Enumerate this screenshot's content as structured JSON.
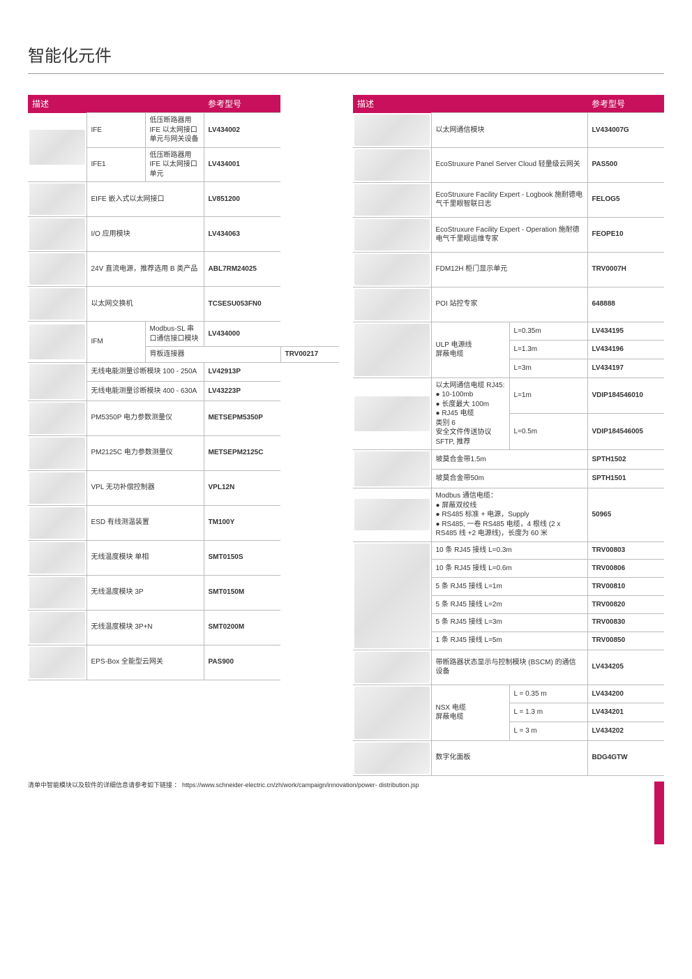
{
  "page_title": "智能化元件",
  "colors": {
    "brand": "#c8105c",
    "border": "#bbbbbb",
    "text": "#333333"
  },
  "headers": {
    "desc": "描述",
    "ref": "参考型号"
  },
  "footnote": "清单中智能模块以及软件的详细信息请参考如下链接 ： https://www.schneider-electric.cn/zh/work/campaign/innovation/power- distribution.jsp",
  "left_table": [
    {
      "img_rows": 2,
      "code": "IFE",
      "desc": "低压断路器用 IFE 以太网接口单元与网关设备",
      "ref": "LV434002"
    },
    {
      "code": "IFE1",
      "desc": "低压断路器用 IFE 以太网接口单元",
      "ref": "LV434001"
    },
    {
      "img_rows": 1,
      "desc": "EIFE 嵌入式以太网接口",
      "ref": "LV851200"
    },
    {
      "img_rows": 1,
      "desc": "I/O 应用模块",
      "ref": "LV434063"
    },
    {
      "img_rows": 1,
      "desc": "24V 直流电源，推荐选用 B 类产品",
      "ref": "ABL7RM24025"
    },
    {
      "img_rows": 1,
      "desc": "以太网交换机",
      "ref": "TCSESU053FN0"
    },
    {
      "img_rows": 2,
      "code": "IFM",
      "desc": "Modbus-SL 串口通信接口模块",
      "ref": "LV434000"
    },
    {
      "desc": "背板连接器",
      "ref": "TRV00217"
    },
    {
      "img_rows": 2,
      "desc": "无线电能测量诊断模块 100 - 250A",
      "ref": "LV42913P"
    },
    {
      "desc": "无线电能测量诊断模块 400 - 630A",
      "ref": "LV43223P"
    },
    {
      "img_rows": 1,
      "desc": "PM5350P 电力参数测量仪",
      "ref": "METSEPM5350P"
    },
    {
      "img_rows": 1,
      "desc": "PM2125C 电力参数测量仪",
      "ref": "METSEPM2125C"
    },
    {
      "img_rows": 1,
      "desc": "VPL 无功补偿控制器",
      "ref": "VPL12N"
    },
    {
      "img_rows": 1,
      "desc": "ESD 有线测温装置",
      "ref": "TM100Y"
    },
    {
      "img_rows": 1,
      "desc": "无线温度模块 单相",
      "ref": "SMT0150S"
    },
    {
      "img_rows": 1,
      "desc": "无线温度模块 3P",
      "ref": "SMT0150M"
    },
    {
      "img_rows": 1,
      "desc": "无线温度模块 3P+N",
      "ref": "SMT0200M"
    },
    {
      "img_rows": 1,
      "desc": "EPS-Box 全能型云网关",
      "ref": "PAS900"
    }
  ],
  "right_table": [
    {
      "img_rows": 1,
      "desc": "以太网通信模块",
      "ref": "LV434007G"
    },
    {
      "img_rows": 1,
      "desc": "EcoStruxure Panel Server Cloud 轻量级云网关",
      "ref": "PAS500"
    },
    {
      "img_rows": 1,
      "desc": "EcoStruxure Facility Expert - Logbook 施耐德电气千里眼智联日志",
      "ref": "FELOG5"
    },
    {
      "img_rows": 1,
      "desc": "EcoStruxure Facility Expert - Operation 施耐德电气千里眼运维专家",
      "ref": "FEOPE10"
    },
    {
      "img_rows": 1,
      "desc": "FDM12H 柜门显示单元",
      "ref": "TRV0007H"
    },
    {
      "img_rows": 1,
      "desc": "POI 站控专家",
      "ref": "648888"
    },
    {
      "img_rows": 3,
      "desc_rows": 3,
      "desc": "ULP 电源线\n屏蔽电缆",
      "len": "L=0.35m",
      "ref": "LV434195"
    },
    {
      "len": "L=1.3m",
      "ref": "LV434196"
    },
    {
      "len": "L=3m",
      "ref": "LV434197"
    },
    {
      "img_rows": 2,
      "desc_rows": 2,
      "desc": "以太网通信电缆 RJ45:\n● 10-100mb\n● 长度最大 100m\n● RJ45 电缆\n类别 6\n安全文件传送协议 SFTP, 推荐",
      "len": "L=1m",
      "ref": "VDIP184546010"
    },
    {
      "len": "L=0.5m",
      "ref": "VDIP184546005"
    },
    {
      "img_rows": 2,
      "desc": "坡莫合金带1.5m",
      "ref": "SPTH1502"
    },
    {
      "desc": "坡莫合金带50m",
      "ref": "SPTH1501"
    },
    {
      "img_rows": 1,
      "desc": "Modbus 通信电缆：\n● 屏蔽双绞线\n● RS485 标准 + 电源，Supply\n● RS485, 一卷 RS485 电缆，4 根线 (2 x RS485 线 +2 电源线)，长度为 60 米",
      "ref": "50965"
    },
    {
      "img_rows": 6,
      "desc": "10 条 RJ45 接线 L=0.3m",
      "ref": "TRV00803"
    },
    {
      "desc": "10 条 RJ45 接线 L=0.6m",
      "ref": "TRV00806"
    },
    {
      "desc": "5 条 RJ45 接线 L=1m",
      "ref": "TRV00810"
    },
    {
      "desc": "5 条 RJ45 接线 L=2m",
      "ref": "TRV00820"
    },
    {
      "desc": "5 条 RJ45 接线 L=3m",
      "ref": "TRV00830"
    },
    {
      "desc": "1 条 RJ45 接线 L=5m",
      "ref": "TRV00850"
    },
    {
      "img_rows": 1,
      "desc": "带断路器状态显示与控制模块 (BSCM) 的通信设备",
      "ref": "LV434205"
    },
    {
      "img_rows": 3,
      "desc_rows": 3,
      "desc": "NSX 电缆\n屏蔽电缆",
      "len": "L = 0.35 m",
      "ref": "LV434200"
    },
    {
      "len": "L = 1.3 m",
      "ref": "LV434201"
    },
    {
      "len": "L = 3 m",
      "ref": "LV434202"
    },
    {
      "img_rows": 1,
      "desc": "数字化面板",
      "ref": "BDG4GTW"
    }
  ]
}
